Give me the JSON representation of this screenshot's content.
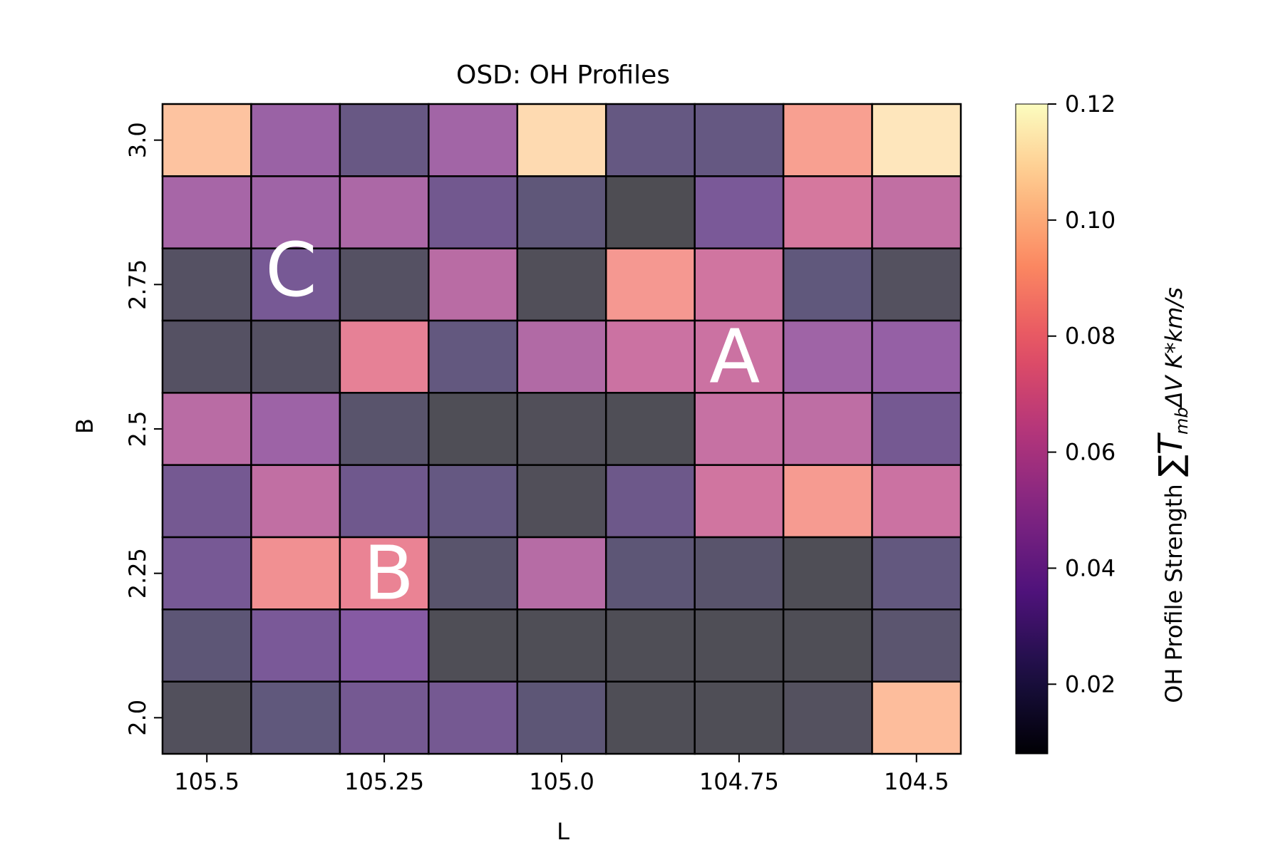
{
  "chart_data": {
    "type": "heatmap",
    "title": "OSD: OH Profiles",
    "xlabel": "L",
    "ylabel": "B",
    "x_ticks": [
      "105.5",
      "105.25",
      "105.0",
      "104.75",
      "104.5"
    ],
    "y_ticks": [
      "3.0",
      "2.75",
      "2.5",
      "2.25",
      "2.0"
    ],
    "colorbar": {
      "label_prefix": "OH Profile Strength ",
      "label_math": "∑T",
      "label_sub": "mb",
      "label_suffix": "ΔV  K*km/s",
      "ticks": [
        "0.02",
        "0.04",
        "0.06",
        "0.08",
        "0.10",
        "0.12"
      ],
      "range": [
        0.008,
        0.12
      ],
      "colormap": "magma",
      "alpha": 0.7
    },
    "annotations": [
      {
        "text": "A",
        "row": 3,
        "col": 6
      },
      {
        "text": "B",
        "row": 6,
        "col": 2
      },
      {
        "text": "C",
        "row": 2,
        "col": 1
      }
    ],
    "grid_values": [
      [
        0.1,
        0.045,
        0.025,
        0.048,
        0.108,
        0.024,
        0.024,
        0.088,
        0.112
      ],
      [
        0.05,
        0.047,
        0.052,
        0.029,
        0.021,
        0.009,
        0.032,
        0.068,
        0.06
      ],
      [
        0.014,
        0.031,
        0.014,
        0.057,
        0.011,
        0.085,
        0.066,
        0.022,
        0.013
      ],
      [
        0.014,
        0.014,
        0.075,
        0.023,
        0.054,
        0.064,
        0.064,
        0.047,
        0.043
      ],
      [
        0.057,
        0.046,
        0.017,
        0.01,
        0.011,
        0.01,
        0.062,
        0.059,
        0.03
      ],
      [
        0.03,
        0.06,
        0.028,
        0.024,
        0.011,
        0.027,
        0.066,
        0.086,
        0.064
      ],
      [
        0.031,
        0.082,
        0.077,
        0.017,
        0.056,
        0.02,
        0.017,
        0.01,
        0.023
      ],
      [
        0.02,
        0.032,
        0.037,
        0.01,
        0.01,
        0.01,
        0.01,
        0.01,
        0.018
      ],
      [
        0.012,
        0.022,
        0.03,
        0.03,
        0.02,
        0.01,
        0.01,
        0.013,
        0.098
      ]
    ]
  }
}
